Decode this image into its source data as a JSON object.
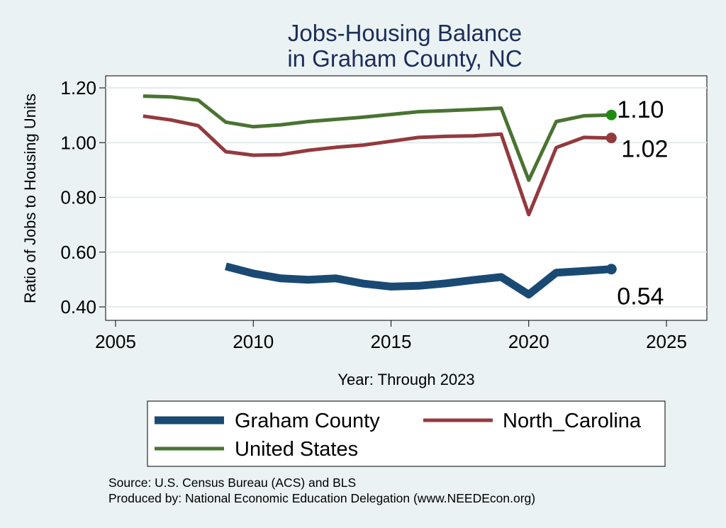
{
  "chart_data": {
    "type": "line",
    "title": [
      "Jobs-Housing Balance",
      "in Graham County, NC"
    ],
    "xlabel": "Year: Through 2023",
    "ylabel": "Ratio of Jobs to Housing Units",
    "xlim": [
      2005,
      2027
    ],
    "ylim": [
      0.37,
      1.245
    ],
    "xticks": [
      2005,
      2010,
      2015,
      2020,
      2025
    ],
    "yticks": [
      0.4,
      0.6,
      0.8,
      1.0,
      1.2
    ],
    "ytick_labels": [
      "0.40",
      "0.60",
      "0.80",
      "1.00",
      "1.20"
    ],
    "grid": true,
    "legend_position": "bottom",
    "series": [
      {
        "name": "United States",
        "color": "#4a7332",
        "marker_color": "#1f8a12",
        "end_label": "1.10",
        "x": [
          2006,
          2007,
          2008,
          2009,
          2010,
          2011,
          2012,
          2013,
          2014,
          2015,
          2016,
          2017,
          2018,
          2019,
          2020,
          2021,
          2022,
          2023
        ],
        "values": [
          1.17,
          1.167,
          1.155,
          1.075,
          1.058,
          1.065,
          1.077,
          1.085,
          1.093,
          1.103,
          1.113,
          1.117,
          1.121,
          1.126,
          0.863,
          1.077,
          1.098,
          1.101
        ]
      },
      {
        "name": "North_Carolina",
        "color": "#933a3e",
        "marker_color": "#933a3e",
        "end_label": "1.02",
        "x": [
          2006,
          2007,
          2008,
          2009,
          2010,
          2011,
          2012,
          2013,
          2014,
          2015,
          2016,
          2017,
          2018,
          2019,
          2020,
          2021,
          2022,
          2023
        ],
        "values": [
          1.097,
          1.083,
          1.062,
          0.967,
          0.954,
          0.956,
          0.972,
          0.983,
          0.991,
          1.005,
          1.019,
          1.023,
          1.025,
          1.031,
          0.737,
          0.982,
          1.019,
          1.017
        ]
      },
      {
        "name": "Graham County",
        "color": "#1a4a73",
        "marker_color": "#1a4a73",
        "end_label": "0.54",
        "x": [
          2009,
          2010,
          2011,
          2012,
          2013,
          2014,
          2015,
          2016,
          2017,
          2018,
          2019,
          2020,
          2021,
          2022,
          2023
        ],
        "values": [
          0.548,
          0.522,
          0.504,
          0.499,
          0.504,
          0.485,
          0.474,
          0.477,
          0.486,
          0.498,
          0.509,
          0.445,
          0.525,
          0.531,
          0.538
        ]
      }
    ],
    "notes": [
      "Source: U.S. Census Bureau (ACS) and BLS",
      "Produced by: National Economic Education Delegation (www.NEEDEcon.org)"
    ]
  }
}
